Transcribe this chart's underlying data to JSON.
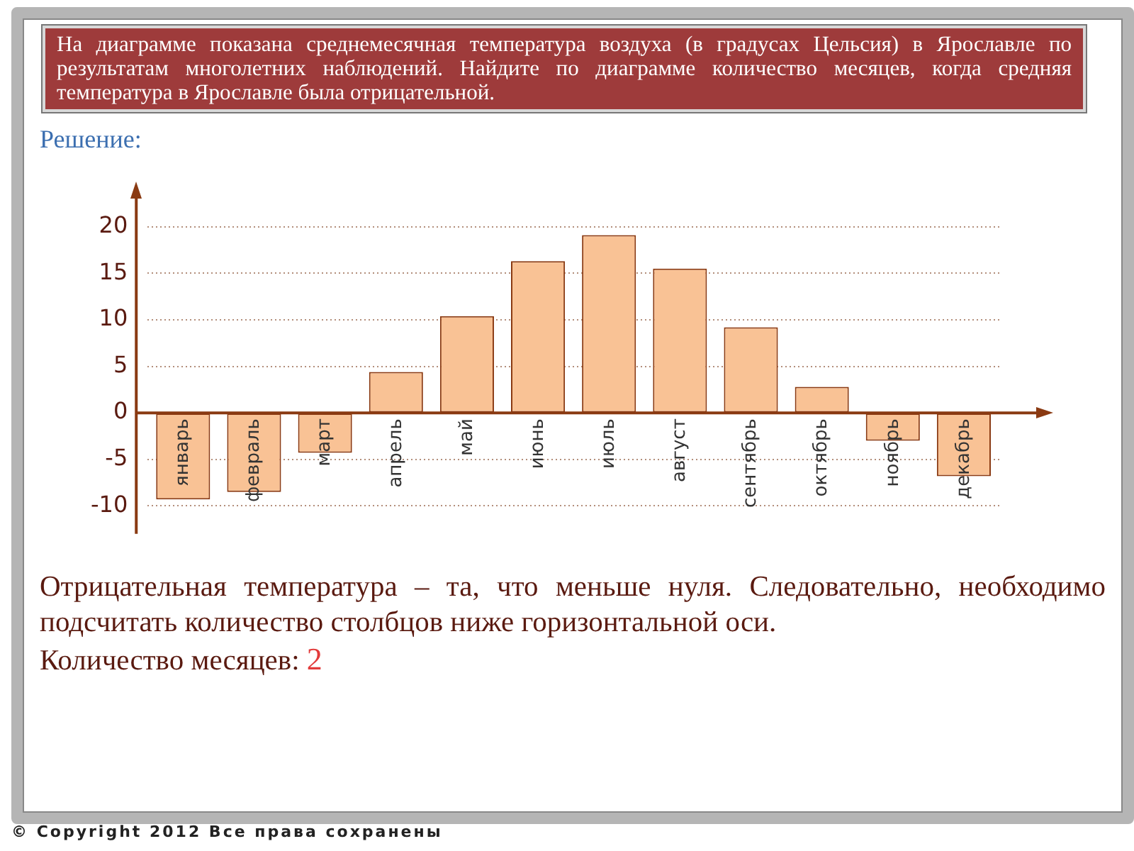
{
  "chart_data": {
    "type": "bar",
    "title": "На диаграмме показана среднемесячная температура воздуха (в градусах Цельсия) в Ярославле по результатам многолетних наблюдений. Найдите по диаграмме количество месяцев, когда средняя температура в Ярославле была отрицательной.",
    "categories": [
      "январь",
      "февраль",
      "март",
      "апрель",
      "май",
      "июнь",
      "июль",
      "август",
      "сентябрь",
      "октябрь",
      "ноябрь",
      "декабрь"
    ],
    "values": [
      -9.3,
      -8.5,
      -4.3,
      4.4,
      10.4,
      16.3,
      19.1,
      15.5,
      9.2,
      2.8,
      -3.0,
      -6.8
    ],
    "color": "#f9c295",
    "ylim": [
      -13,
      24
    ],
    "yticks": [
      -10,
      -5,
      0,
      5,
      10,
      15,
      20
    ],
    "grid": "y",
    "annotations": [
      "Решение:",
      "Отрицательная температура – та, что меньше нуля. Следовательно, необходимо подсчитать количество столбцов ниже горизонтальной оси.",
      "Количество месяцев: 2",
      "© Copyright 2012 Все права сохранены"
    ]
  }
}
